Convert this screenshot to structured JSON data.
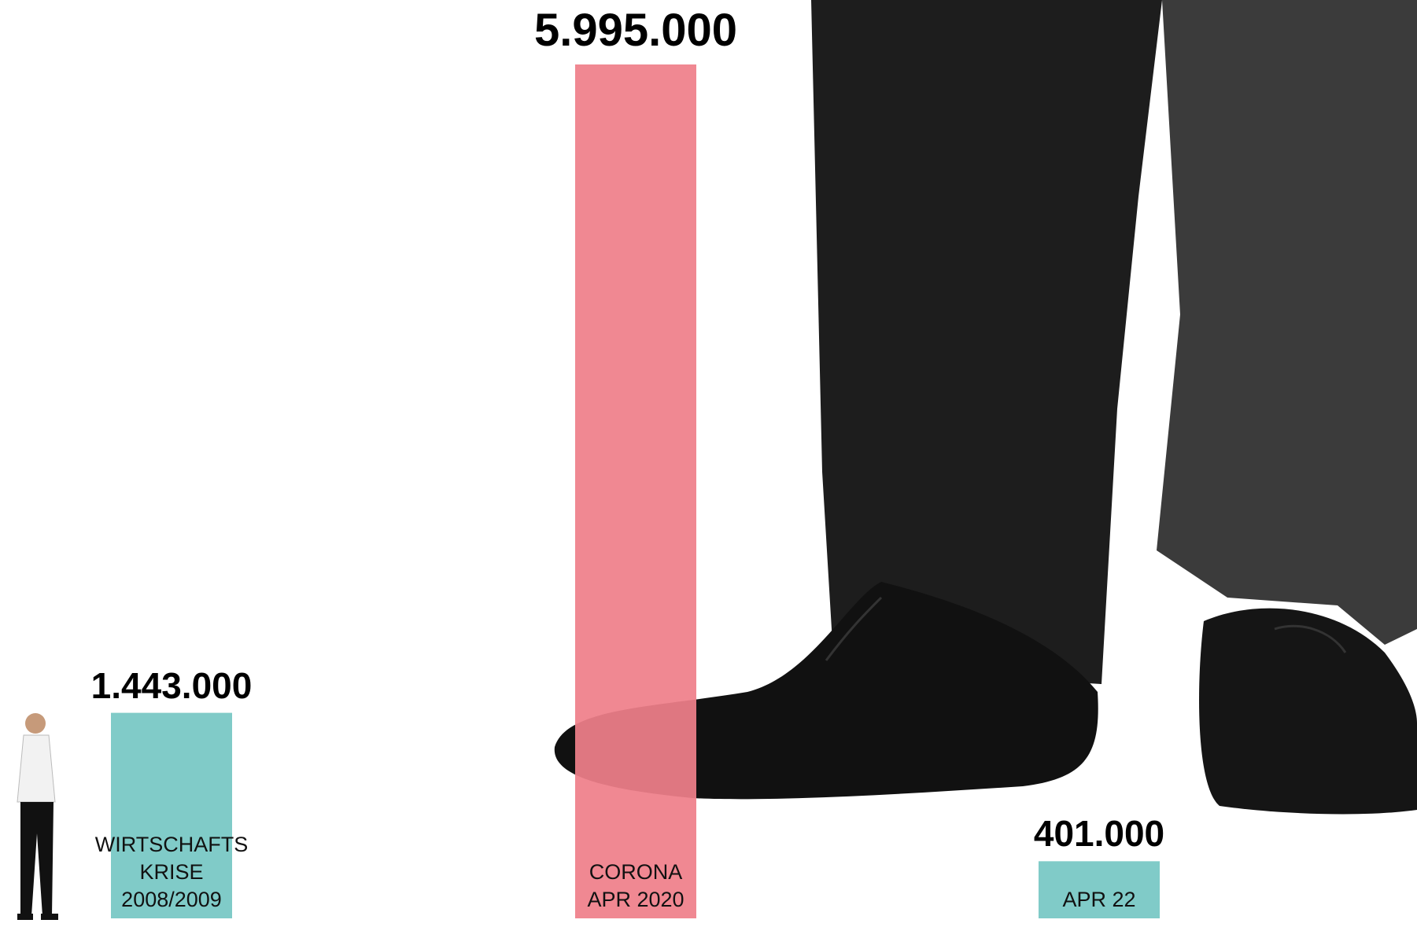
{
  "chart_data": {
    "type": "bar",
    "categories": [
      "WIRTSCHAFTS\nKRISE\n2008/2009",
      "CORONA\nAPR 2020",
      "APR 22"
    ],
    "values": [
      1443000,
      5995000,
      401000
    ],
    "value_labels": [
      "1.443.000",
      "5.995.000",
      "401.000"
    ],
    "colors": [
      "#80cbc8",
      "#ef7f8a",
      "#80cbc8"
    ]
  }
}
